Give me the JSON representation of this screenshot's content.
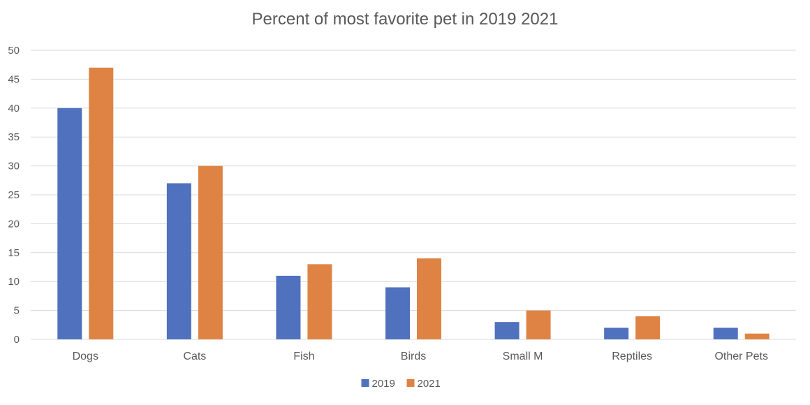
{
  "chart_data": {
    "type": "bar",
    "title": "Percent of most favorite pet in 2019 2021",
    "xlabel": "",
    "ylabel": "",
    "categories": [
      "Dogs",
      "Cats",
      "Fish",
      "Birds",
      "Small M",
      "Reptiles",
      "Other Pets"
    ],
    "series": [
      {
        "name": "2019",
        "values": [
          40,
          27,
          11,
          9,
          3,
          2,
          2
        ],
        "color": "#4f71be"
      },
      {
        "name": "2021",
        "values": [
          47,
          30,
          13,
          14,
          5,
          4,
          1
        ],
        "color": "#de8344"
      }
    ],
    "ylim": [
      0,
      50
    ],
    "yticks": [
      0,
      5,
      10,
      15,
      20,
      25,
      30,
      35,
      40,
      45,
      50
    ],
    "grid": true,
    "legend_position": "bottom",
    "colors": {
      "gridline": "#d9d9d9",
      "axis_text": "#595959"
    }
  }
}
